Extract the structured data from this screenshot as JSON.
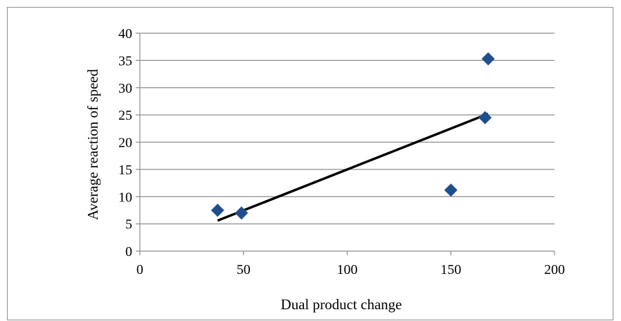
{
  "chart_data": {
    "type": "scatter",
    "title": "",
    "xlabel": "Dual product change",
    "ylabel": "Average reaction of speed",
    "xlim": [
      0,
      200
    ],
    "ylim": [
      0,
      40
    ],
    "x_ticks": [
      0,
      50,
      100,
      150,
      200
    ],
    "y_ticks": [
      0,
      5,
      10,
      15,
      20,
      25,
      30,
      35,
      40
    ],
    "grid": "horizontal",
    "legend": "none",
    "series": [
      {
        "marker": "diamond",
        "color": "#1f4e8c",
        "points": [
          {
            "x": 37.5,
            "y": 7.5
          },
          {
            "x": 49,
            "y": 7
          },
          {
            "x": 150,
            "y": 11.2
          },
          {
            "x": 166.5,
            "y": 24.5
          },
          {
            "x": 168,
            "y": 35.3
          }
        ]
      }
    ],
    "trendline": {
      "type": "linear",
      "color": "#000000",
      "x": [
        37.5,
        168
      ],
      "y": [
        5.6,
        25.2
      ]
    }
  }
}
